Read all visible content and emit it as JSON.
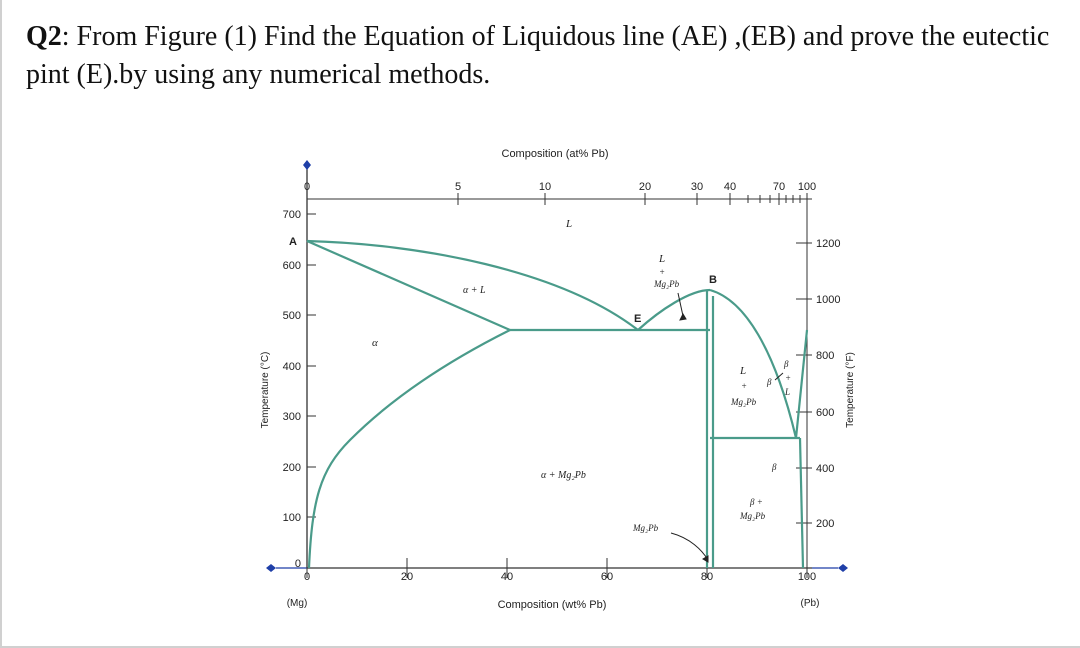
{
  "question": {
    "number": "Q2",
    "text": ": From Figure (1) Find the Equation of Liquidous line (AE) ,(EB) and prove the eutectic pint (E).by using any numerical methods."
  },
  "diagram": {
    "top_axis_title": "Composition (at% Pb)",
    "bottom_axis_title": "Composition (wt% Pb)",
    "left_axis_title": "Temperature (°C)",
    "right_axis_title": "Temperature (°F)",
    "bottom_ticks": [
      "0",
      "20",
      "40",
      "60",
      "80",
      "100"
    ],
    "bottom_end_labels": {
      "left": "(Mg)",
      "right": "(Pb)"
    },
    "top_ticks": [
      "0",
      "5",
      "10",
      "20",
      "30",
      "40",
      "70",
      "100"
    ],
    "left_ticks": [
      "700",
      "600",
      "500",
      "400",
      "300",
      "200",
      "100",
      "0"
    ],
    "right_ticks": [
      "1200",
      "1000",
      "800",
      "600",
      "400",
      "200"
    ],
    "points": {
      "A": "A",
      "B": "B",
      "E": "E"
    },
    "regions": {
      "liquid": "L",
      "alpha_liquid": "α + L",
      "alpha": "α",
      "alpha_mg2pb": "α + Mg₂Pb",
      "liquid_mg2pb_l1": "L",
      "liquid_mg2pb_l2": "+",
      "liquid_mg2pb_l3": "Mg₂Pb",
      "right_l_mg2pb_l1": "L",
      "right_l_mg2pb_l2": "+",
      "right_l_mg2pb_l3": "Mg₂Pb",
      "beta_mg2pb_l1": "β +",
      "beta_mg2pb_l2": "Mg₂Pb",
      "mg2pb_pointer": "Mg₂Pb",
      "beta_liq_l1": "β",
      "beta_liq_l2": "+",
      "beta_liq_l3": "L",
      "beta_small": "β",
      "beta_lower": "β"
    },
    "colors": {
      "phase_lines": "#4a9b8a",
      "axes": "#333333",
      "markers": "#1f3fa8"
    }
  }
}
